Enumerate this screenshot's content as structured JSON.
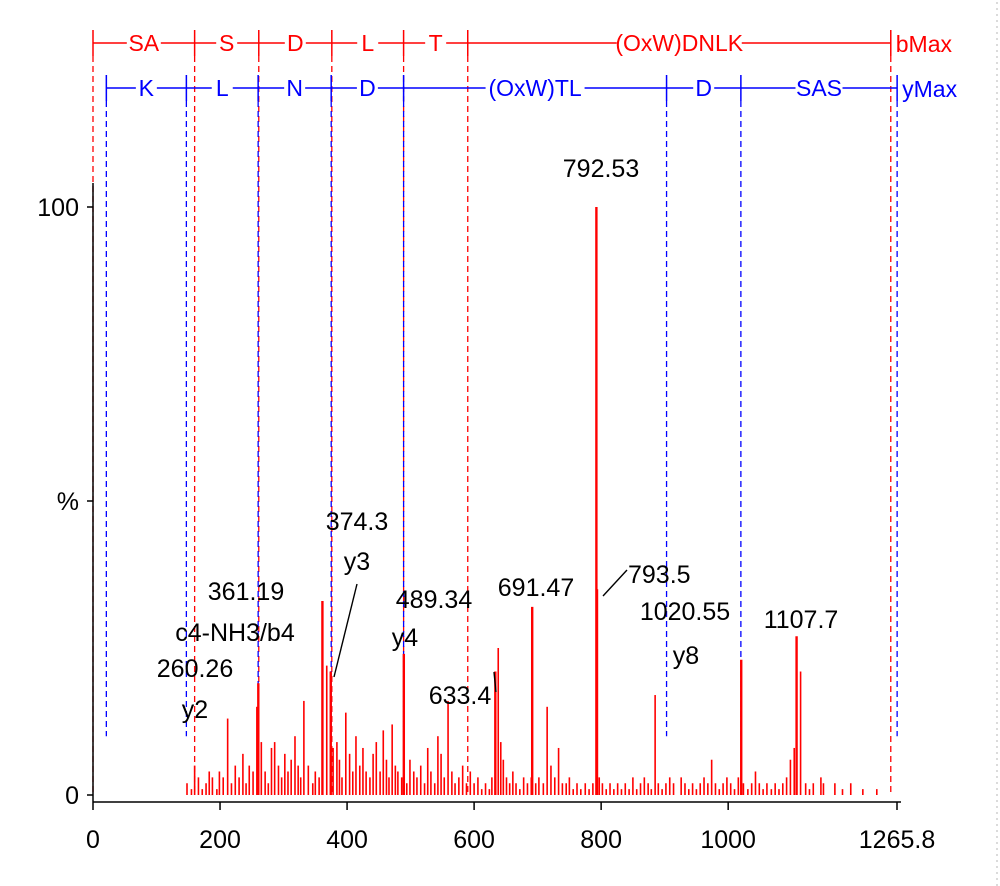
{
  "chart_data": {
    "type": "bar",
    "title": "",
    "xlabel": "",
    "ylabel": "%",
    "xlim": [
      0,
      1265.8
    ],
    "ylim": [
      0,
      100
    ],
    "x_ticks": [
      "0",
      "200",
      "400",
      "600",
      "800",
      "1000",
      "1265.8"
    ],
    "y_ticks": [
      "0",
      "%",
      "100"
    ],
    "colors": {
      "b_series": "#ff0000",
      "y_series": "#0000ff",
      "axis": "#000000",
      "peaks": "#ff0000"
    },
    "b_ladder": {
      "cuts": [
        0,
        160,
        261,
        376,
        489,
        590,
        1256
      ],
      "labels": [
        "SA",
        "S",
        "D",
        "L",
        "T",
        "(OxW)DNLK"
      ],
      "end_label": "bMax"
    },
    "y_ladder": {
      "cuts": [
        21,
        147,
        260,
        375,
        489,
        903,
        1020,
        1266
      ],
      "labels": [
        "K",
        "L",
        "N",
        "D",
        "(OxW)TL",
        "D",
        "SAS"
      ],
      "end_label": "yMax",
      "drop_to": 10
    },
    "labeled_peaks": [
      {
        "mz": 260.26,
        "intensity": 19,
        "labels": [
          "260.26",
          "y2"
        ]
      },
      {
        "mz": 361.19,
        "intensity": 33,
        "labels": [
          "361.19",
          "c4-NH3/b4"
        ]
      },
      {
        "mz": 374.3,
        "intensity": 21,
        "labels": [
          "374.3",
          "y3"
        ]
      },
      {
        "mz": 489.34,
        "intensity": 24,
        "labels": [
          "489.34",
          "y4"
        ]
      },
      {
        "mz": 633.4,
        "intensity": 21,
        "labels": [
          "633.4"
        ]
      },
      {
        "mz": 691.47,
        "intensity": 32,
        "labels": [
          "691.47"
        ]
      },
      {
        "mz": 792.53,
        "intensity": 100,
        "labels": [
          "792.53"
        ]
      },
      {
        "mz": 793.5,
        "intensity": 35,
        "labels": [
          "793.5"
        ]
      },
      {
        "mz": 1020.55,
        "intensity": 23,
        "labels": [
          "1020.55",
          "y8"
        ]
      },
      {
        "mz": 1107.7,
        "intensity": 27,
        "labels": [
          "1107.7"
        ]
      }
    ],
    "peaks": [
      [
        148,
        2
      ],
      [
        155,
        1
      ],
      [
        160,
        5
      ],
      [
        166,
        3
      ],
      [
        172,
        1
      ],
      [
        178,
        2
      ],
      [
        183,
        4
      ],
      [
        188,
        3
      ],
      [
        195,
        1
      ],
      [
        199,
        4
      ],
      [
        205,
        3
      ],
      [
        212,
        13
      ],
      [
        218,
        2
      ],
      [
        224,
        5
      ],
      [
        230,
        3
      ],
      [
        236,
        7
      ],
      [
        241,
        2
      ],
      [
        246,
        5
      ],
      [
        252,
        4
      ],
      [
        258,
        15
      ],
      [
        265,
        9
      ],
      [
        271,
        4
      ],
      [
        276,
        2
      ],
      [
        281,
        8
      ],
      [
        286,
        9
      ],
      [
        292,
        5
      ],
      [
        297,
        3
      ],
      [
        302,
        7
      ],
      [
        307,
        4
      ],
      [
        312,
        6
      ],
      [
        318,
        10
      ],
      [
        323,
        5
      ],
      [
        327,
        3
      ],
      [
        332,
        16
      ],
      [
        339,
        5
      ],
      [
        346,
        2
      ],
      [
        350,
        4
      ],
      [
        356,
        3
      ],
      [
        368,
        22
      ],
      [
        378,
        8
      ],
      [
        384,
        9
      ],
      [
        388,
        6
      ],
      [
        392,
        3
      ],
      [
        398,
        14
      ],
      [
        404,
        7
      ],
      [
        409,
        4
      ],
      [
        414,
        10
      ],
      [
        420,
        5
      ],
      [
        425,
        8
      ],
      [
        430,
        4
      ],
      [
        436,
        3
      ],
      [
        441,
        7
      ],
      [
        446,
        9
      ],
      [
        452,
        4
      ],
      [
        457,
        11
      ],
      [
        462,
        6
      ],
      [
        466,
        3
      ],
      [
        471,
        12
      ],
      [
        476,
        5
      ],
      [
        480,
        4
      ],
      [
        486,
        3
      ],
      [
        494,
        2
      ],
      [
        499,
        6
      ],
      [
        505,
        4
      ],
      [
        510,
        3
      ],
      [
        516,
        5
      ],
      [
        522,
        2
      ],
      [
        527,
        8
      ],
      [
        532,
        4
      ],
      [
        538,
        2
      ],
      [
        543,
        10
      ],
      [
        548,
        7
      ],
      [
        553,
        3
      ],
      [
        559,
        16
      ],
      [
        565,
        4
      ],
      [
        570,
        2
      ],
      [
        576,
        3
      ],
      [
        582,
        5
      ],
      [
        588,
        2
      ],
      [
        594,
        4
      ],
      [
        600,
        2
      ],
      [
        606,
        3
      ],
      [
        612,
        1
      ],
      [
        618,
        2
      ],
      [
        624,
        1
      ],
      [
        628,
        3
      ],
      [
        638,
        25
      ],
      [
        642,
        9
      ],
      [
        646,
        6
      ],
      [
        651,
        3
      ],
      [
        656,
        2
      ],
      [
        661,
        4
      ],
      [
        666,
        2
      ],
      [
        672,
        1
      ],
      [
        678,
        3
      ],
      [
        684,
        2
      ],
      [
        690,
        3
      ],
      [
        697,
        2
      ],
      [
        702,
        3
      ],
      [
        709,
        2
      ],
      [
        715,
        15
      ],
      [
        721,
        5
      ],
      [
        727,
        3
      ],
      [
        733,
        8
      ],
      [
        739,
        2
      ],
      [
        745,
        2
      ],
      [
        750,
        3
      ],
      [
        756,
        1
      ],
      [
        762,
        2
      ],
      [
        768,
        1
      ],
      [
        775,
        2
      ],
      [
        781,
        1
      ],
      [
        787,
        2
      ],
      [
        797,
        3
      ],
      [
        802,
        2
      ],
      [
        808,
        1
      ],
      [
        814,
        2
      ],
      [
        820,
        1
      ],
      [
        826,
        2
      ],
      [
        832,
        1
      ],
      [
        838,
        2
      ],
      [
        844,
        1
      ],
      [
        850,
        3
      ],
      [
        856,
        1
      ],
      [
        862,
        2
      ],
      [
        868,
        3
      ],
      [
        874,
        2
      ],
      [
        879,
        1
      ],
      [
        885,
        17
      ],
      [
        890,
        2
      ],
      [
        896,
        1
      ],
      [
        902,
        2
      ],
      [
        908,
        3
      ],
      [
        914,
        2
      ],
      [
        926,
        3
      ],
      [
        932,
        2
      ],
      [
        938,
        1
      ],
      [
        944,
        2
      ],
      [
        950,
        1
      ],
      [
        956,
        2
      ],
      [
        962,
        3
      ],
      [
        968,
        2
      ],
      [
        974,
        6
      ],
      [
        980,
        2
      ],
      [
        986,
        1
      ],
      [
        992,
        2
      ],
      [
        998,
        3
      ],
      [
        1004,
        2
      ],
      [
        1010,
        1
      ],
      [
        1016,
        3
      ],
      [
        1024,
        2
      ],
      [
        1031,
        1
      ],
      [
        1037,
        2
      ],
      [
        1043,
        4
      ],
      [
        1049,
        2
      ],
      [
        1055,
        1
      ],
      [
        1061,
        2
      ],
      [
        1068,
        1
      ],
      [
        1074,
        2
      ],
      [
        1080,
        1
      ],
      [
        1086,
        2
      ],
      [
        1092,
        3
      ],
      [
        1098,
        6
      ],
      [
        1104,
        8
      ],
      [
        1114,
        21
      ],
      [
        1122,
        2
      ],
      [
        1128,
        1
      ],
      [
        1134,
        2
      ],
      [
        1146,
        3
      ],
      [
        1150,
        2
      ],
      [
        1168,
        2
      ],
      [
        1180,
        1
      ],
      [
        1193,
        2
      ],
      [
        1212,
        1
      ],
      [
        1234,
        1
      ]
    ]
  }
}
